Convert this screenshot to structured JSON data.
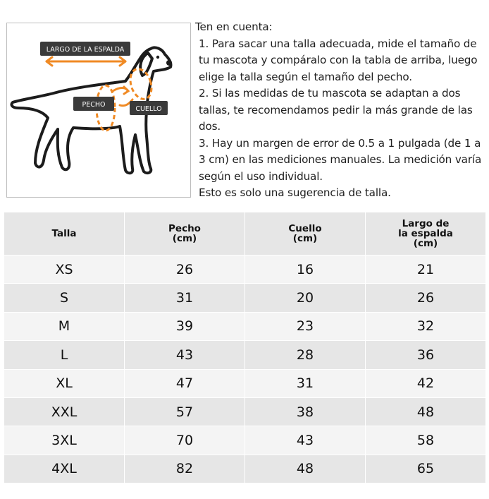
{
  "diagram": {
    "labels": {
      "back_length": "LARGO DE LA ESPALDA",
      "chest": "PECHO",
      "neck": "CUELLO"
    },
    "accent_color": "#f08a24",
    "label_bg_color": "#3a3a3a",
    "icon": "dog-silhouette-icon"
  },
  "notes": {
    "heading": "Ten en cuenta:",
    "item1": "1. Para sacar una talla adecuada, mide el tamaño de tu mascota y compáralo con la tabla de arriba, luego elige la talla según el tamaño del pecho.",
    "item2": "2. Si las medidas de tu mascota se adaptan a dos tallas, te recomendamos pedir la más grande de las dos.",
    "item3": "3. Hay un margen de error de 0.5 a 1 pulgada (de 1 a 3 cm) en las mediciones manuales. La medición varía según el uso individual.",
    "footer": "Esto es solo una sugerencia de talla."
  },
  "table": {
    "headers": {
      "size": [
        "Talla"
      ],
      "chest": [
        "Pecho",
        "(cm)"
      ],
      "neck": [
        "Cuello",
        "(cm)"
      ],
      "back": [
        "Largo de",
        "la espalda",
        "(cm)"
      ]
    },
    "rows": [
      [
        "XS",
        "26",
        "16",
        "21"
      ],
      [
        "S",
        "31",
        "20",
        "26"
      ],
      [
        "M",
        "39",
        "23",
        "32"
      ],
      [
        "L",
        "43",
        "28",
        "36"
      ],
      [
        "XL",
        "47",
        "31",
        "42"
      ],
      [
        "XXL",
        "57",
        "38",
        "48"
      ],
      [
        "3XL",
        "70",
        "43",
        "58"
      ],
      [
        "4XL",
        "82",
        "48",
        "65"
      ]
    ]
  }
}
